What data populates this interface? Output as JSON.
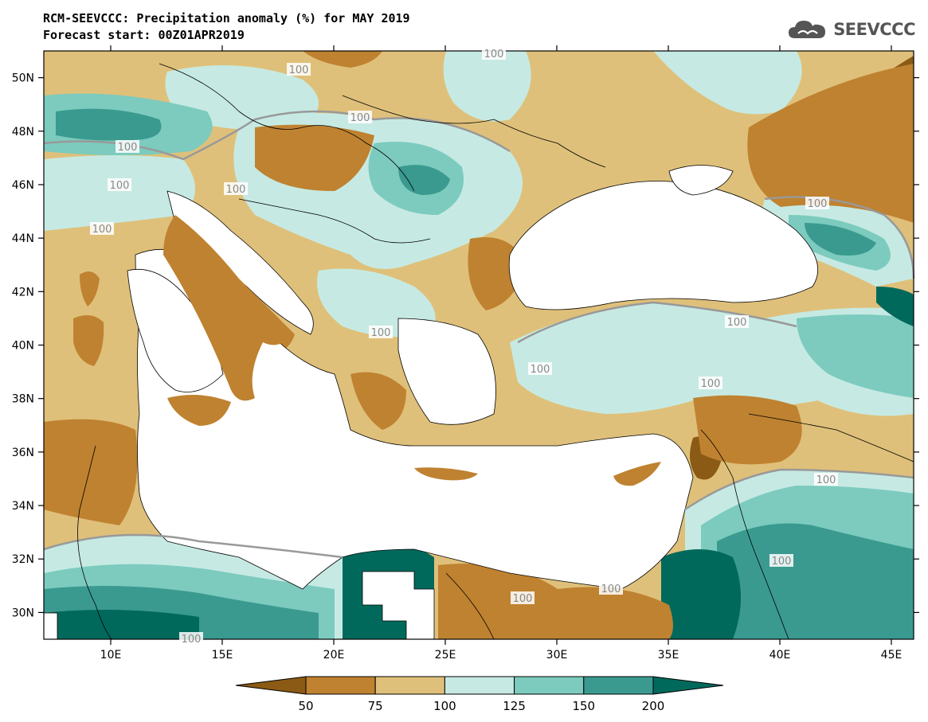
{
  "header": {
    "title_line1": "RCM-SEEVCCC: Precipitation anomaly (%) for MAY 2019",
    "title_line2": "Forecast start: 00Z01APR2019"
  },
  "logo": {
    "icon": "cloud-logo-icon",
    "text": "SEEVCCC"
  },
  "colors": {
    "much_below": "#8B5A14",
    "below": "#BF8230",
    "slightly_below": "#DFC07A",
    "slightly_above": "#C6EAE3",
    "above": "#7CCBBE",
    "well_above": "#3A9A90",
    "much_above": "#00695C",
    "sea": "#ffffff",
    "contour": "#999999"
  },
  "axes": {
    "x_ticks": [
      "10E",
      "15E",
      "20E",
      "25E",
      "30E",
      "35E",
      "40E",
      "45E"
    ],
    "y_ticks": [
      "50N",
      "48N",
      "46N",
      "44N",
      "42N",
      "40N",
      "38N",
      "36N",
      "34N",
      "32N",
      "30N"
    ],
    "lon_range": [
      7,
      46
    ],
    "lat_range": [
      29,
      51
    ]
  },
  "legend": {
    "labels": [
      "50",
      "75",
      "100",
      "125",
      "150",
      "200"
    ]
  },
  "contour_labels": [
    "100",
    "100",
    "100",
    "100",
    "100",
    "100",
    "100",
    "100",
    "100",
    "100",
    "100",
    "100",
    "100",
    "100",
    "100",
    "100",
    "100"
  ]
}
